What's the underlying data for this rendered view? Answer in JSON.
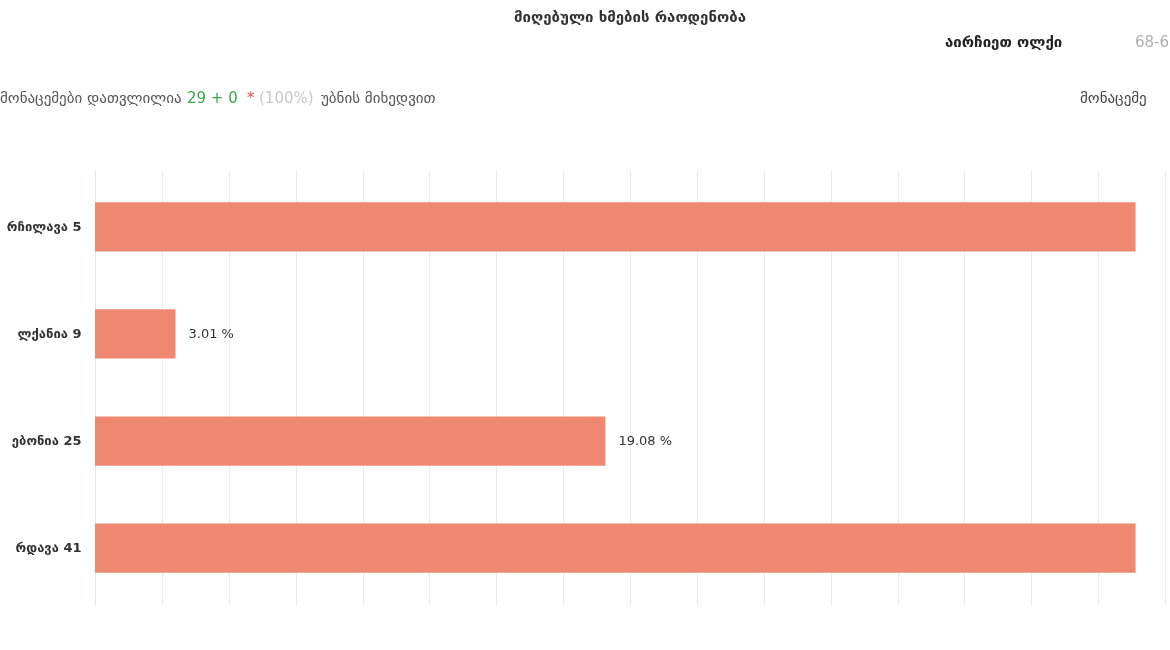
{
  "chart_data": {
    "type": "bar",
    "orientation": "horizontal",
    "title": "მიღებული ხმების რაოდენობა",
    "categories": [
      "რჩილავა 5",
      "ლქანია 9",
      "ებონია 25",
      "რდავა 41"
    ],
    "values": [
      38.9,
      3.01,
      19.08,
      38.9
    ],
    "value_labels": [
      null,
      "3.01 %",
      "19.08 %",
      null
    ],
    "color": "#ef8870",
    "xlim": [
      0,
      40
    ],
    "xticks": [
      {
        "value": 0,
        "label": null
      },
      {
        "value": 2.5,
        "label": null
      },
      {
        "value": 5,
        "label": null
      },
      {
        "value": 7.5,
        "label": null
      },
      {
        "value": 10,
        "label": null
      },
      {
        "value": 12.5,
        "label": null
      },
      {
        "value": 15,
        "label": null
      },
      {
        "value": 17.5,
        "label": null
      },
      {
        "value": 20,
        "label": null
      },
      {
        "value": 22.5,
        "label": null
      },
      {
        "value": 25,
        "label": null
      },
      {
        "value": 27.5,
        "label": null
      },
      {
        "value": 30,
        "label": null
      },
      {
        "value": 32.5,
        "label": null
      },
      {
        "value": 35,
        "label": null
      },
      {
        "value": 37.5,
        "label": null
      },
      {
        "value": 40,
        "label": null
      }
    ],
    "tick_labels": "y",
    "grid": "x",
    "annotations": [
      "აირჩიეთ ოლქი",
      "68-6",
      "მონაცემები დათვლილია",
      "29 + 0",
      "*",
      "(100%)",
      "უბნის მიხედვით",
      "მონაცემე"
    ]
  }
}
